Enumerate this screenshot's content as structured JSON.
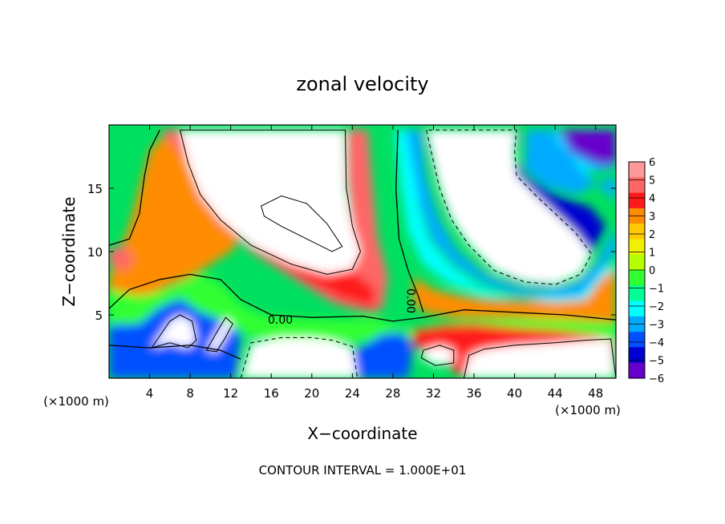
{
  "chart_data": {
    "type": "heatmap",
    "title": "zonal velocity",
    "xlabel": "X−coordinate",
    "ylabel": "Z−coordinate",
    "x_unit": "(×1000 m)",
    "y_unit": "(×1000 m)",
    "xlim": [
      0,
      50
    ],
    "ylim": [
      0,
      20
    ],
    "x_ticks": [
      4,
      8,
      12,
      16,
      20,
      24,
      28,
      32,
      36,
      40,
      44,
      48
    ],
    "y_ticks": [
      5,
      10,
      15
    ],
    "colorbar": {
      "min": -6,
      "max": 6,
      "ticks": [
        6,
        5,
        4,
        3,
        2,
        1,
        0,
        -1,
        -2,
        -3,
        -4,
        -5,
        -6
      ],
      "tick_labels": [
        "6",
        "5",
        "4",
        "3",
        "2",
        "1",
        "0",
        "−1",
        "−2",
        "−3",
        "−4",
        "−5",
        "−6"
      ],
      "colors": [
        "#ff9999",
        "#ff6666",
        "#ff1a1a",
        "#ff8c00",
        "#ffc800",
        "#f0f000",
        "#b4ff00",
        "#32ff32",
        "#00ff96",
        "#00ffff",
        "#00aaff",
        "#0050ff",
        "#0000d0",
        "#6600cc"
      ]
    },
    "contour_labels": [
      {
        "text": "0.00",
        "x": 16.9,
        "y": 4.3
      },
      {
        "text": "0.00",
        "x": 29.4,
        "y": 6.1,
        "rotation": 90
      }
    ],
    "regions": [
      {
        "value": 3,
        "points": [
          [
            0,
            3.5
          ],
          [
            2,
            5
          ],
          [
            5,
            7
          ],
          [
            8,
            8
          ],
          [
            10,
            9
          ],
          [
            12,
            10
          ],
          [
            13,
            11
          ],
          [
            11,
            13
          ],
          [
            10,
            15
          ],
          [
            9,
            17
          ],
          [
            8,
            19
          ],
          [
            6,
            19.6
          ],
          [
            4,
            18
          ],
          [
            3,
            15
          ],
          [
            2,
            12
          ],
          [
            1,
            10
          ],
          [
            0,
            8
          ]
        ]
      },
      {
        "value": 5,
        "points": [
          [
            5,
            19.6
          ],
          [
            7,
            19.6
          ],
          [
            8,
            17
          ],
          [
            9,
            14
          ],
          [
            12,
            11.5
          ],
          [
            14,
            10
          ],
          [
            18,
            8
          ],
          [
            20,
            7
          ],
          [
            22,
            6
          ],
          [
            24,
            5.5
          ],
          [
            26,
            5.2
          ],
          [
            27,
            5.5
          ],
          [
            27.5,
            8
          ],
          [
            26.5,
            11
          ],
          [
            26,
            15
          ],
          [
            25.5,
            19.6
          ],
          [
            23.5,
            19.6
          ],
          [
            23.5,
            16
          ],
          [
            24,
            12
          ],
          [
            24,
            9.5
          ],
          [
            22,
            8
          ],
          [
            18,
            8.8
          ],
          [
            14,
            10.5
          ],
          [
            11,
            12
          ],
          [
            9,
            14.5
          ],
          [
            8,
            17
          ]
        ]
      },
      {
        "value": 4,
        "points": [
          [
            13,
            11.2
          ],
          [
            17,
            9
          ],
          [
            20,
            7.5
          ],
          [
            23,
            6.3
          ],
          [
            26,
            5.6
          ],
          [
            26.3,
            7
          ],
          [
            24,
            8.5
          ],
          [
            20,
            9
          ],
          [
            16,
            10
          ],
          [
            13.5,
            11.8
          ]
        ]
      },
      {
        "value": 5,
        "points": [
          [
            0,
            9
          ],
          [
            1.5,
            8.5
          ],
          [
            2.5,
            9.4
          ],
          [
            1.5,
            10.4
          ],
          [
            0,
            10.2
          ]
        ]
      },
      {
        "value": 0,
        "points": [
          [
            0,
            7
          ],
          [
            3,
            6.5
          ],
          [
            6,
            7
          ],
          [
            9,
            8.2
          ],
          [
            11,
            7.5
          ],
          [
            13,
            5.8
          ],
          [
            15,
            5
          ],
          [
            17,
            4.8
          ],
          [
            20,
            4.7
          ],
          [
            23,
            4.6
          ],
          [
            26,
            4.7
          ],
          [
            28,
            4.2
          ],
          [
            30,
            3.8
          ],
          [
            32,
            4.2
          ],
          [
            35,
            4.5
          ],
          [
            39,
            4.6
          ],
          [
            43,
            4.7
          ],
          [
            47,
            4.5
          ],
          [
            50,
            4.2
          ],
          [
            50,
            2.6
          ],
          [
            46,
            3
          ],
          [
            42,
            3.2
          ],
          [
            38,
            3.2
          ],
          [
            34,
            3.4
          ],
          [
            30,
            3.4
          ],
          [
            28,
            3
          ],
          [
            26,
            2.8
          ],
          [
            22,
            3
          ],
          [
            18,
            3
          ],
          [
            15,
            3.2
          ],
          [
            13,
            3.5
          ],
          [
            10,
            4.5
          ],
          [
            8,
            5.2
          ],
          [
            5,
            4.5
          ],
          [
            2,
            4
          ],
          [
            0,
            4
          ]
        ]
      },
      {
        "value": -4,
        "points": [
          [
            0,
            4.2
          ],
          [
            3,
            4.3
          ],
          [
            5,
            5.6
          ],
          [
            7,
            6.3
          ],
          [
            9,
            5.2
          ],
          [
            11,
            4.6
          ],
          [
            13,
            3.6
          ],
          [
            12.5,
            0
          ],
          [
            0,
            0
          ]
        ]
      },
      {
        "value": -4,
        "points": [
          [
            24,
            2
          ],
          [
            25.5,
            2.8
          ],
          [
            27,
            3.5
          ],
          [
            29,
            3.6
          ],
          [
            30,
            2.5
          ],
          [
            29.5,
            0
          ],
          [
            24,
            0
          ]
        ]
      },
      {
        "value": 4,
        "points": [
          [
            30,
            3.8
          ],
          [
            33,
            4.2
          ],
          [
            36,
            4.3
          ],
          [
            40,
            4.0
          ],
          [
            44,
            3.8
          ],
          [
            48,
            3.4
          ],
          [
            50,
            3
          ],
          [
            50,
            0
          ],
          [
            35,
            0
          ],
          [
            32,
            1.8
          ],
          [
            30,
            2.6
          ]
        ]
      },
      {
        "value": 3,
        "points": [
          [
            30,
            8
          ],
          [
            32,
            7
          ],
          [
            34,
            6.6
          ],
          [
            37,
            6.2
          ],
          [
            41,
            6.1
          ],
          [
            44,
            6.3
          ],
          [
            47,
            7.5
          ],
          [
            49,
            8.7
          ],
          [
            50,
            9
          ],
          [
            50,
            4.4
          ],
          [
            46,
            4.6
          ],
          [
            40,
            4.8
          ],
          [
            34,
            4.8
          ],
          [
            31,
            5.2
          ],
          [
            30,
            6
          ]
        ]
      },
      {
        "value": -2,
        "points": [
          [
            28.2,
            19.6
          ],
          [
            30.5,
            19.6
          ],
          [
            30.5,
            14
          ],
          [
            31.5,
            11
          ],
          [
            33.5,
            9
          ],
          [
            36.5,
            7.3
          ],
          [
            40,
            6.3
          ],
          [
            44,
            6
          ],
          [
            47,
            6.2
          ],
          [
            48.5,
            7.8
          ],
          [
            50,
            8.8
          ],
          [
            50,
            17
          ],
          [
            46,
            15.8
          ],
          [
            43,
            16
          ],
          [
            44,
            18
          ],
          [
            44,
            19.6
          ],
          [
            47,
            19.6
          ],
          [
            50,
            19.6
          ],
          [
            50,
            9.2
          ],
          [
            47.5,
            8
          ],
          [
            45,
            6.6
          ],
          [
            41,
            6.2
          ],
          [
            37,
            6.5
          ],
          [
            33.5,
            7.5
          ],
          [
            31,
            9
          ],
          [
            29.5,
            11.5
          ],
          [
            28.8,
            15
          ]
        ]
      },
      {
        "value": -3,
        "points": [
          [
            29.3,
            19.6
          ],
          [
            30.6,
            14
          ],
          [
            31.8,
            11
          ],
          [
            34,
            9
          ],
          [
            37,
            7.5
          ],
          [
            40,
            6.6
          ],
          [
            44,
            6.4
          ],
          [
            46.5,
            6.5
          ],
          [
            48,
            7.8
          ],
          [
            49,
            9
          ],
          [
            50,
            10
          ],
          [
            50,
            16
          ],
          [
            46,
            14.5
          ],
          [
            43,
            15.2
          ],
          [
            41,
            16.5
          ],
          [
            41.2,
            19.6
          ],
          [
            44,
            19.6
          ],
          [
            45.5,
            17.5
          ],
          [
            48,
            16.3
          ],
          [
            50,
            16.6
          ],
          [
            50,
            19.6
          ],
          [
            50,
            19.6
          ],
          [
            44,
            19.6
          ],
          [
            44,
            19
          ],
          [
            46,
            17
          ],
          [
            48.5,
            15
          ],
          [
            50,
            14
          ],
          [
            50,
            12
          ],
          [
            48,
            9
          ],
          [
            46,
            7.5
          ],
          [
            43,
            7
          ],
          [
            40,
            7.3
          ],
          [
            37,
            8.3
          ],
          [
            34.2,
            10.2
          ],
          [
            32.4,
            12.8
          ],
          [
            31.2,
            16
          ],
          [
            30.8,
            19.6
          ]
        ]
      },
      {
        "value": -5,
        "points": [
          [
            31.2,
            19.6
          ],
          [
            32.2,
            16
          ],
          [
            33.4,
            13
          ],
          [
            35,
            11
          ],
          [
            37.5,
            8.8
          ],
          [
            40,
            7.7
          ],
          [
            43,
            7.3
          ],
          [
            45.5,
            7.9
          ],
          [
            47,
            9
          ],
          [
            48,
            10.5
          ],
          [
            49,
            12
          ],
          [
            47.5,
            13.5
          ],
          [
            44,
            14.5
          ],
          [
            41,
            16
          ],
          [
            40,
            17.5
          ],
          [
            40.5,
            19.6
          ]
        ]
      },
      {
        "value": -6,
        "points": [
          [
            44.5,
            19.6
          ],
          [
            45.5,
            18
          ],
          [
            48,
            17
          ],
          [
            50,
            16.8
          ],
          [
            50,
            19.6
          ]
        ]
      }
    ],
    "white_regions": [
      {
        "points": [
          [
            7,
            19.6
          ],
          [
            7.8,
            17
          ],
          [
            9,
            14.5
          ],
          [
            11,
            12.5
          ],
          [
            14,
            10.5
          ],
          [
            18,
            9
          ],
          [
            21.5,
            8.2
          ],
          [
            24,
            8.6
          ],
          [
            24.8,
            10
          ],
          [
            24,
            12
          ],
          [
            23.4,
            15
          ],
          [
            23.3,
            19.6
          ]
        ]
      },
      {
        "points": [
          [
            31.3,
            19.6
          ],
          [
            32.6,
            15
          ],
          [
            33.8,
            12.5
          ],
          [
            35.5,
            10.5
          ],
          [
            38,
            8.5
          ],
          [
            41,
            7.6
          ],
          [
            44,
            7.4
          ],
          [
            46.5,
            8.2
          ],
          [
            47.6,
            9.8
          ],
          [
            46,
            11.5
          ],
          [
            44,
            13
          ],
          [
            42,
            14.5
          ],
          [
            40.2,
            16
          ],
          [
            40,
            18
          ],
          [
            40.2,
            19.6
          ]
        ]
      },
      {
        "points": [
          [
            4.2,
            2.4
          ],
          [
            6,
            4.5
          ],
          [
            7,
            5
          ],
          [
            8.2,
            4.5
          ],
          [
            8.6,
            3
          ],
          [
            7.8,
            2.4
          ],
          [
            6,
            2.8
          ]
        ]
      },
      {
        "points": [
          [
            9.6,
            2.2
          ],
          [
            10.6,
            3.6
          ],
          [
            11.5,
            4.8
          ],
          [
            12.2,
            4.3
          ],
          [
            11.4,
            3.1
          ],
          [
            10.6,
            2.1
          ]
        ]
      },
      {
        "points": [
          [
            13,
            0
          ],
          [
            14,
            2.8
          ],
          [
            17,
            3.2
          ],
          [
            20,
            3.2
          ],
          [
            22,
            3
          ],
          [
            24,
            2.5
          ],
          [
            24.5,
            0
          ]
        ]
      },
      {
        "points": [
          [
            35,
            0
          ],
          [
            35.5,
            1.8
          ],
          [
            37,
            2.3
          ],
          [
            40,
            2.6
          ],
          [
            44,
            2.8
          ],
          [
            47,
            3
          ],
          [
            49.5,
            3.1
          ],
          [
            50,
            0
          ]
        ]
      },
      {
        "points": [
          [
            31,
            2.2
          ],
          [
            32.6,
            2.6
          ],
          [
            34,
            2.2
          ],
          [
            34,
            1.2
          ],
          [
            32.2,
            1
          ],
          [
            30.8,
            1.6
          ]
        ]
      }
    ]
  }
}
